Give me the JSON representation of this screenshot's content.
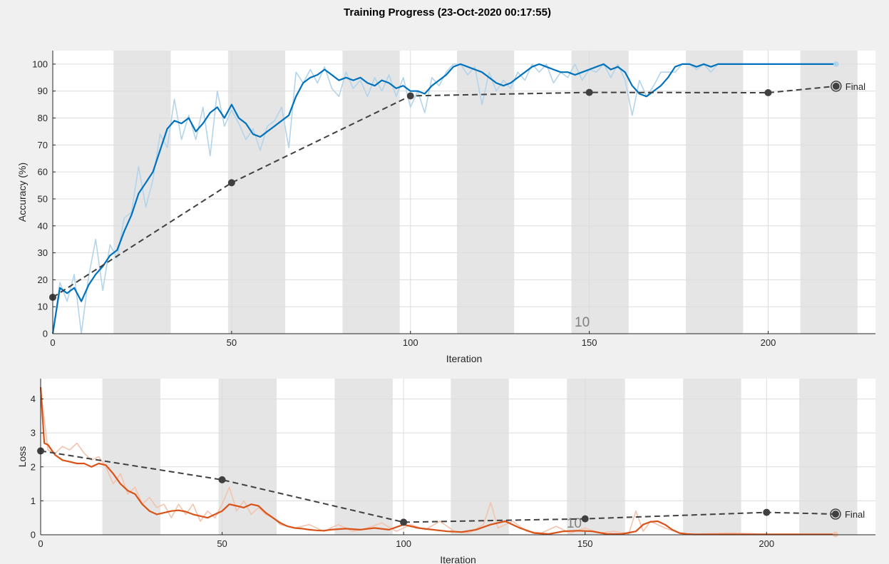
{
  "title": "Training Progress (23-Oct-2020 00:17:55)",
  "colors": {
    "accuracy": "#0072bd",
    "accuracy_raw": "#b3d4ea",
    "loss": "#d95319",
    "loss_raw": "#f4c3ad",
    "validation": "#404040",
    "epoch_band": "#e5e5e5",
    "grid": "#dcdcdc"
  },
  "chart_data": [
    {
      "type": "line",
      "xlabel": "Iteration",
      "ylabel": "Accuracy (%)",
      "xlim": [
        0,
        230
      ],
      "ylim": [
        0,
        105
      ],
      "xticks": [
        0,
        50,
        100,
        150,
        200
      ],
      "yticks": [
        0,
        10,
        20,
        30,
        40,
        50,
        60,
        70,
        80,
        90,
        100
      ],
      "grid": true,
      "epoch_bands": [
        [
          17,
          33
        ],
        [
          49,
          65
        ],
        [
          81,
          97
        ],
        [
          113,
          129
        ],
        [
          145,
          161
        ],
        [
          177,
          193
        ],
        [
          209,
          225
        ]
      ],
      "epoch_annotation": {
        "text": "10",
        "x": 148
      },
      "series": [
        {
          "role": "smoothed",
          "x": [
            0,
            2,
            4,
            6,
            8,
            10,
            12,
            14,
            16,
            18,
            20,
            22,
            24,
            26,
            28,
            30,
            32,
            34,
            36,
            38,
            40,
            42,
            44,
            46,
            48,
            50,
            52,
            54,
            56,
            58,
            60,
            62,
            64,
            66,
            68,
            70,
            72,
            74,
            76,
            78,
            80,
            82,
            84,
            86,
            88,
            90,
            92,
            94,
            96,
            98,
            100,
            102,
            104,
            106,
            108,
            110,
            112,
            114,
            116,
            118,
            120,
            122,
            124,
            126,
            128,
            130,
            132,
            134,
            136,
            138,
            140,
            142,
            144,
            146,
            148,
            150,
            152,
            154,
            156,
            158,
            160,
            162,
            164,
            166,
            168,
            170,
            172,
            174,
            176,
            178,
            180,
            182,
            184,
            186,
            188,
            190,
            192,
            194,
            196,
            198,
            200,
            205,
            210,
            215,
            219
          ],
          "values": [
            0,
            17,
            15,
            17,
            12,
            18,
            22,
            25,
            29,
            31,
            38,
            44,
            52,
            56,
            60,
            68,
            76,
            79,
            78,
            80,
            75,
            78,
            82,
            84,
            80,
            85,
            80,
            78,
            74,
            73,
            75,
            77,
            79,
            81,
            88,
            93,
            95,
            96,
            98,
            96,
            94,
            95,
            94,
            95,
            93,
            92,
            94,
            93,
            91,
            92,
            90,
            90,
            89,
            92,
            94,
            96,
            99,
            100,
            99,
            98,
            97,
            95,
            93,
            92,
            93,
            95,
            97,
            99,
            100,
            99,
            98,
            97,
            97,
            96,
            97,
            98,
            99,
            100,
            98,
            99,
            97,
            92,
            89,
            88,
            90,
            92,
            95,
            99,
            100,
            100,
            99,
            100,
            99,
            100,
            100,
            100,
            100,
            100,
            100,
            100,
            100,
            100,
            100,
            100,
            100
          ]
        },
        {
          "role": "raw",
          "x": [
            0,
            2,
            4,
            6,
            8,
            10,
            12,
            14,
            16,
            18,
            20,
            22,
            24,
            26,
            28,
            30,
            32,
            34,
            36,
            38,
            40,
            42,
            44,
            46,
            48,
            50,
            52,
            54,
            56,
            58,
            60,
            62,
            64,
            66,
            68,
            70,
            72,
            74,
            76,
            78,
            80,
            82,
            84,
            86,
            88,
            90,
            92,
            94,
            96,
            98,
            100,
            102,
            104,
            106,
            108,
            110,
            112,
            114,
            116,
            118,
            120,
            122,
            124,
            126,
            128,
            130,
            132,
            134,
            136,
            138,
            140,
            142,
            144,
            146,
            148,
            150,
            152,
            154,
            156,
            158,
            160,
            162,
            164,
            166,
            168,
            170,
            172,
            174,
            176,
            178,
            180,
            182,
            184,
            186,
            188,
            190,
            192,
            194,
            196,
            198,
            200,
            205,
            210,
            215,
            219
          ],
          "values": [
            0,
            19,
            12,
            22,
            0,
            21,
            35,
            16,
            33,
            28,
            43,
            45,
            62,
            47,
            57,
            74,
            69,
            87,
            72,
            81,
            72,
            84,
            66,
            90,
            77,
            83,
            78,
            72,
            76,
            68,
            77,
            79,
            84,
            69,
            97,
            93,
            98,
            93,
            99,
            91,
            88,
            97,
            91,
            94,
            88,
            95,
            90,
            96,
            88,
            95,
            84,
            90,
            82,
            95,
            92,
            97,
            100,
            100,
            96,
            99,
            85,
            97,
            90,
            94,
            91,
            97,
            94,
            100,
            97,
            100,
            93,
            97,
            95,
            100,
            94,
            98,
            97,
            100,
            95,
            100,
            94,
            81,
            94,
            88,
            92,
            97,
            97,
            97,
            100,
            100,
            98,
            100,
            97,
            100,
            100,
            100,
            100,
            100,
            100,
            100,
            100,
            100,
            100,
            100,
            100
          ]
        },
        {
          "role": "validation",
          "x": [
            0,
            50,
            100,
            150,
            200,
            219
          ],
          "values": [
            13.5,
            56,
            88.2,
            89.5,
            89.4,
            91.8
          ]
        }
      ],
      "final_label": "Final"
    },
    {
      "type": "line",
      "xlabel": "Iteration",
      "ylabel": "Loss",
      "xlim": [
        0,
        230
      ],
      "ylim": [
        0,
        4.6
      ],
      "xticks": [
        0,
        50,
        100,
        150,
        200
      ],
      "yticks": [
        0,
        1,
        2,
        3,
        4
      ],
      "grid": true,
      "epoch_bands": [
        [
          17,
          33
        ],
        [
          49,
          65
        ],
        [
          81,
          97
        ],
        [
          113,
          129
        ],
        [
          145,
          161
        ],
        [
          177,
          193
        ],
        [
          209,
          225
        ]
      ],
      "epoch_annotation": {
        "text": "10",
        "x": 147
      },
      "series": [
        {
          "role": "smoothed",
          "x": [
            0,
            1,
            2,
            4,
            6,
            8,
            10,
            12,
            14,
            16,
            18,
            20,
            22,
            24,
            26,
            28,
            30,
            32,
            34,
            36,
            38,
            40,
            42,
            44,
            46,
            48,
            50,
            52,
            54,
            56,
            58,
            60,
            62,
            64,
            66,
            68,
            70,
            72,
            74,
            76,
            78,
            80,
            84,
            88,
            92,
            96,
            100,
            104,
            108,
            112,
            116,
            120,
            124,
            128,
            132,
            136,
            140,
            144,
            148,
            152,
            156,
            160,
            164,
            166,
            168,
            170,
            172,
            174,
            176,
            178,
            180,
            185,
            190,
            195,
            200,
            205,
            210,
            215,
            219
          ],
          "values": [
            4.35,
            2.7,
            2.65,
            2.35,
            2.2,
            2.15,
            2.1,
            2.1,
            2.0,
            2.1,
            2.05,
            1.8,
            1.5,
            1.3,
            1.2,
            0.9,
            0.7,
            0.6,
            0.65,
            0.7,
            0.72,
            0.68,
            0.6,
            0.55,
            0.5,
            0.6,
            0.7,
            0.9,
            0.85,
            0.8,
            0.9,
            0.85,
            0.65,
            0.5,
            0.35,
            0.25,
            0.2,
            0.18,
            0.15,
            0.13,
            0.12,
            0.15,
            0.18,
            0.15,
            0.2,
            0.15,
            0.3,
            0.2,
            0.15,
            0.1,
            0.08,
            0.15,
            0.3,
            0.4,
            0.2,
            0.05,
            0.02,
            0.1,
            0.12,
            0.1,
            0.02,
            0.02,
            0.1,
            0.3,
            0.38,
            0.4,
            0.3,
            0.15,
            0.05,
            0.02,
            0.01,
            0.01,
            0.01,
            0.01,
            0.01,
            0.01,
            0.01,
            0.01,
            0.01
          ]
        },
        {
          "role": "raw",
          "x": [
            0,
            2,
            4,
            6,
            8,
            10,
            12,
            14,
            16,
            18,
            20,
            22,
            24,
            26,
            28,
            30,
            32,
            34,
            36,
            38,
            40,
            42,
            44,
            46,
            48,
            50,
            52,
            54,
            56,
            58,
            60,
            62,
            64,
            66,
            70,
            74,
            78,
            82,
            86,
            90,
            94,
            98,
            102,
            106,
            110,
            114,
            118,
            122,
            124,
            126,
            130,
            134,
            138,
            142,
            146,
            150,
            154,
            158,
            162,
            164,
            166,
            168,
            172,
            176,
            180,
            190,
            200,
            210,
            219
          ],
          "values": [
            4.3,
            2.5,
            2.4,
            2.6,
            2.5,
            2.7,
            2.4,
            2.2,
            2.3,
            2.0,
            1.5,
            1.8,
            1.2,
            1.4,
            0.9,
            1.1,
            0.8,
            0.9,
            0.5,
            0.9,
            0.6,
            0.9,
            0.4,
            0.7,
            0.5,
            0.9,
            1.4,
            0.7,
            1.0,
            0.6,
            0.8,
            0.6,
            0.5,
            0.3,
            0.2,
            0.3,
            0.1,
            0.3,
            0.1,
            0.2,
            0.35,
            0.1,
            0.3,
            0.15,
            0.4,
            0.1,
            0.05,
            0.3,
            0.95,
            0.2,
            0.4,
            0.1,
            0.05,
            0.25,
            0.05,
            0.2,
            0.05,
            0.1,
            0.02,
            0.7,
            0.1,
            0.4,
            0.2,
            0.05,
            0.02,
            0.05,
            0.02,
            0.02,
            0.02
          ]
        },
        {
          "role": "validation",
          "x": [
            0,
            50,
            100,
            150,
            200,
            219
          ],
          "values": [
            2.47,
            1.62,
            0.37,
            0.47,
            0.66,
            0.61
          ]
        }
      ],
      "final_label": "Final"
    }
  ]
}
